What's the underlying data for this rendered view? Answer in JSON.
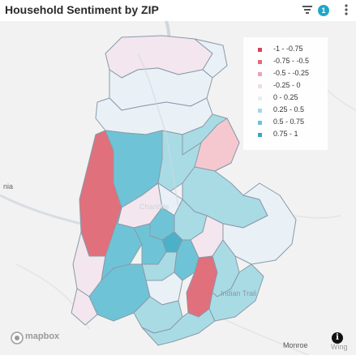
{
  "header": {
    "title": "Household Sentiment by ZIP",
    "filter_count": "1",
    "accent_color": "#20a7c9"
  },
  "map": {
    "colors": {
      "strong_negative": "#e0707c",
      "mild_negative": "#f5c8cf",
      "slight_negative": "#f3e6ee",
      "neutral": "#e9f1f7",
      "slight_positive": "#a9dbe5",
      "positive": "#6ec4d6",
      "strong_positive": "#4bb1c8"
    },
    "legend": [
      {
        "label": "-1 - -0.75",
        "color": "#d6455a"
      },
      {
        "label": "-0.75 - -0.5",
        "color": "#e06d7c"
      },
      {
        "label": "-0.5 - -0.25",
        "color": "#f0a3b3"
      },
      {
        "label": "-0.25 - 0",
        "color": "#eedde6"
      },
      {
        "label": "0 - 0.25",
        "color": "#e6eef3"
      },
      {
        "label": "0.25 - 0.5",
        "color": "#a3d8e3"
      },
      {
        "label": "0.5 - 0.75",
        "color": "#6cc3d6"
      },
      {
        "label": "0.75 - 1",
        "color": "#3aa6c3"
      }
    ],
    "places": {
      "west_label": "nia",
      "city_label": "Charlotte",
      "trail_label": "Indian Trail",
      "monroe_label": "Monroe",
      "wingate_label": "Wing"
    },
    "attribution": {
      "logo_text": "mapbox",
      "info_symbol": "i"
    }
  }
}
